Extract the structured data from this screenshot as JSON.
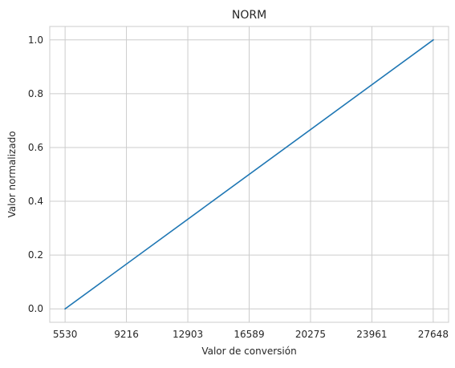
{
  "chart_data": {
    "type": "line",
    "title": "NORM",
    "xlabel": "Valor de conversión",
    "ylabel": "Valor normalizado",
    "xlim": [
      4608,
      28570
    ],
    "ylim": [
      -0.05,
      1.05
    ],
    "x_ticks": [
      5530,
      9216,
      12903,
      16589,
      20275,
      23961,
      27648
    ],
    "y_ticks": [
      0.0,
      0.2,
      0.4,
      0.6,
      0.8,
      1.0
    ],
    "y_tick_labels": [
      "0.0",
      "0.2",
      "0.4",
      "0.6",
      "0.8",
      "1.0"
    ],
    "grid": true,
    "series": [
      {
        "x": [
          5530,
          27648
        ],
        "y": [
          0.0,
          1.0
        ]
      }
    ],
    "colors": {
      "line": "#1f77b4",
      "grid": "#cccccc",
      "axes_edge": "#cccccc",
      "text": "#262626"
    }
  }
}
